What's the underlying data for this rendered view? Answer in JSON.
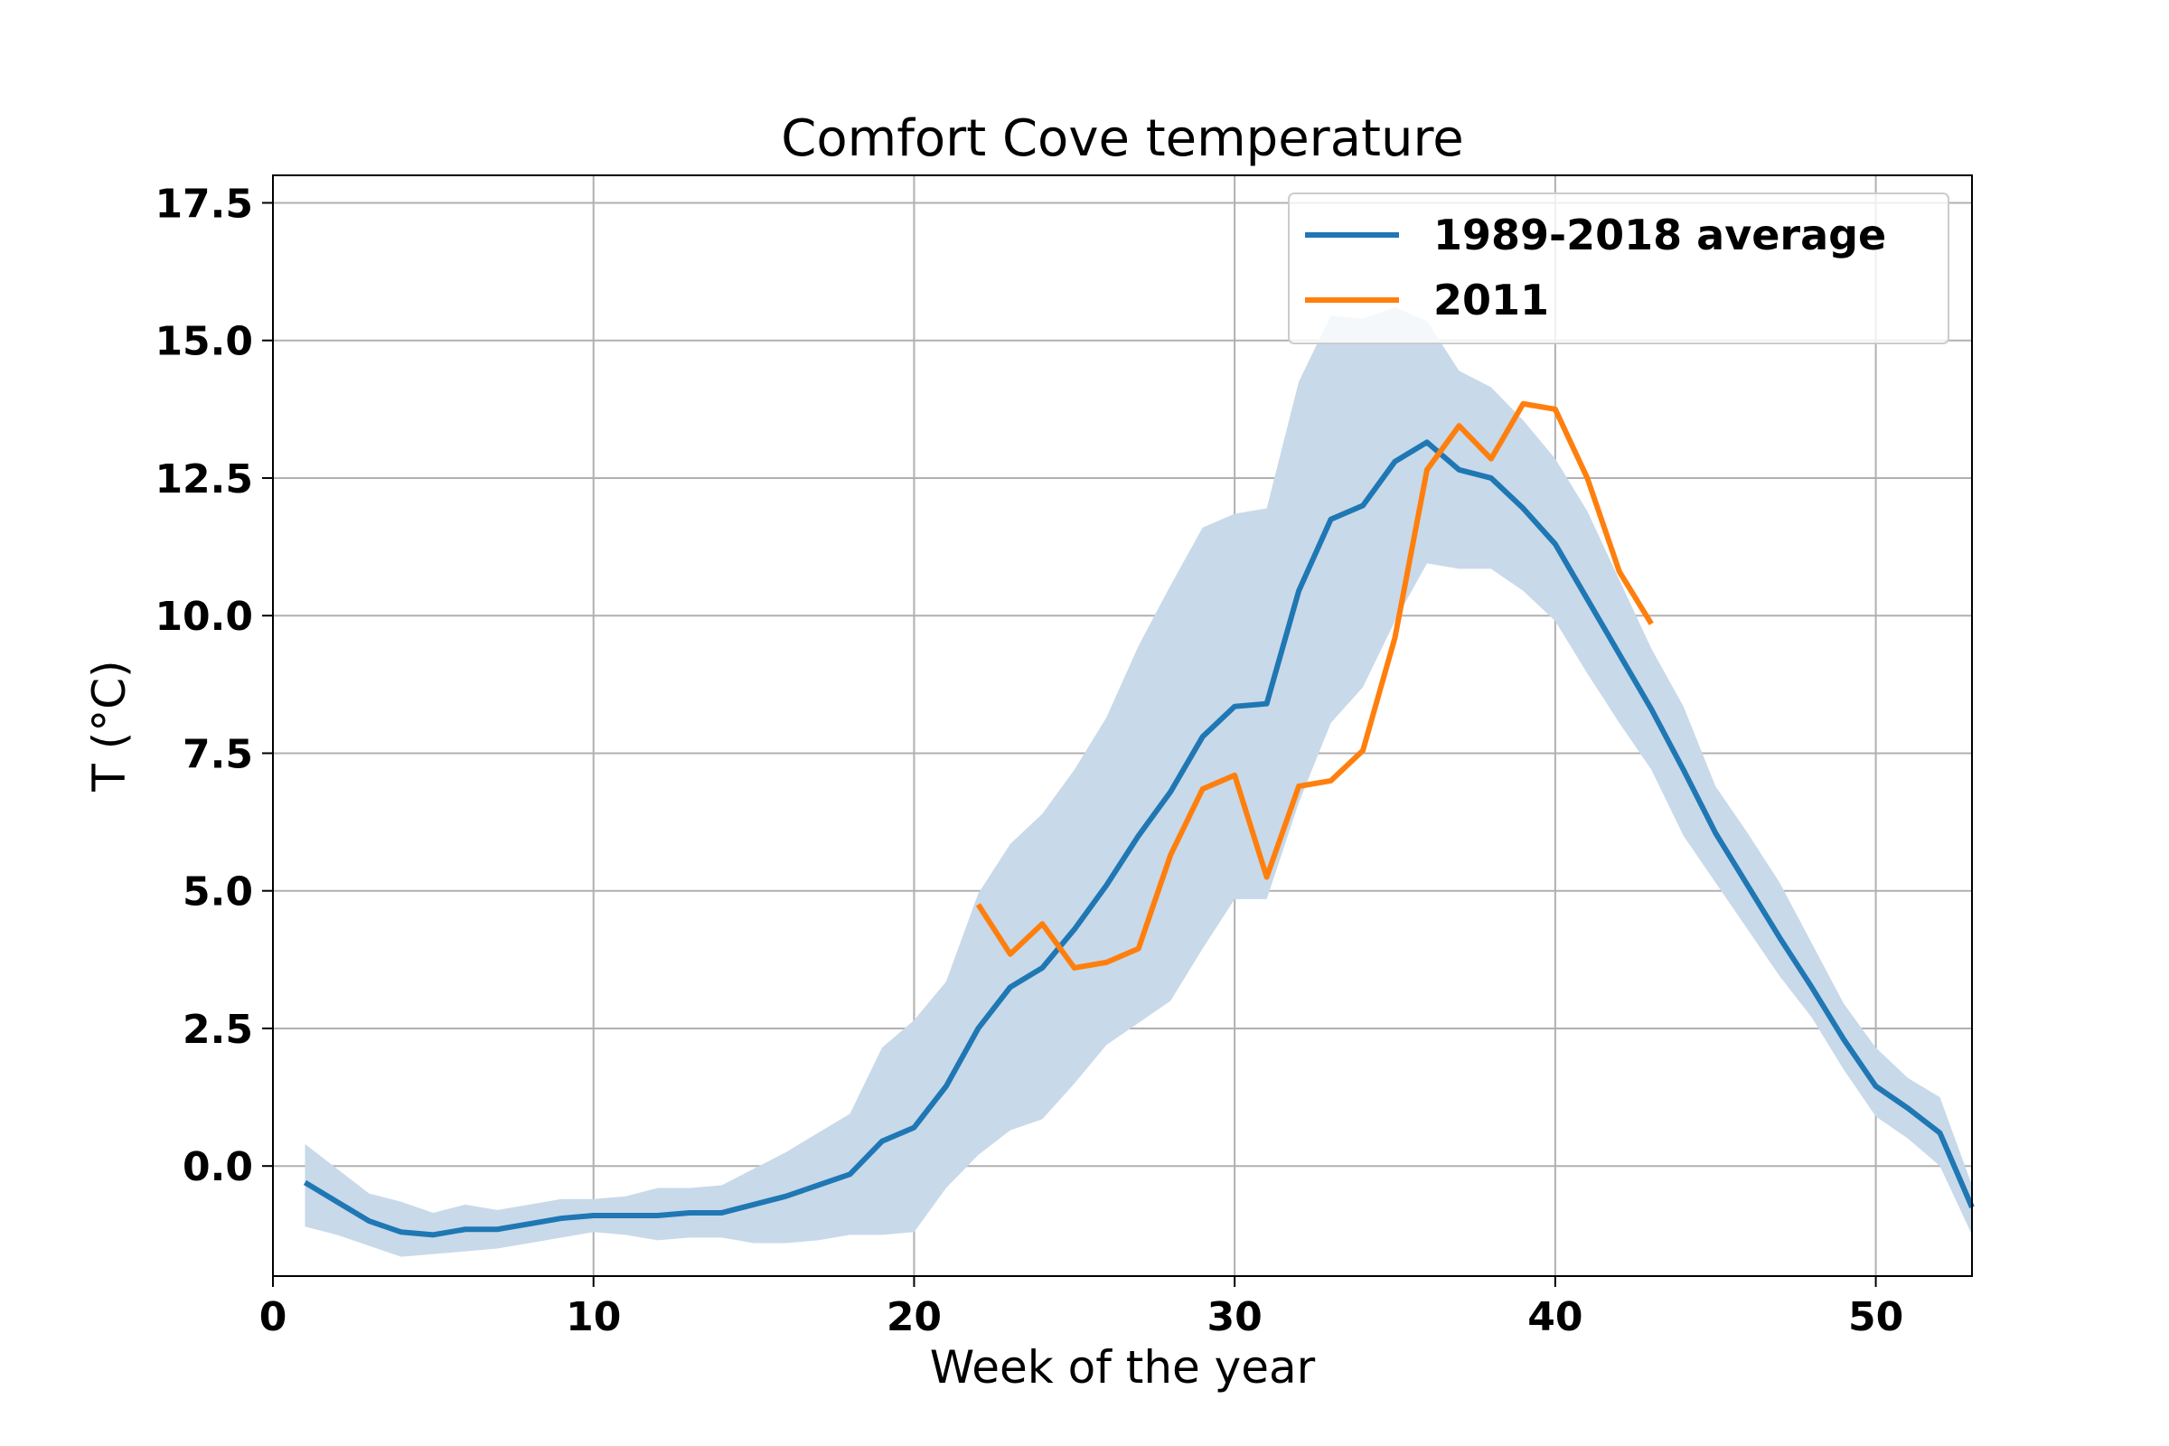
{
  "chart_data": {
    "type": "line",
    "title": "Comfort Cove temperature",
    "xlabel": "Week of the year",
    "ylabel": "T (°C)",
    "xlim": [
      0,
      53
    ],
    "ylim": [
      -2.0,
      18.0
    ],
    "xticks": [
      0,
      10,
      20,
      30,
      40,
      50
    ],
    "yticks": [
      0.0,
      2.5,
      5.0,
      7.5,
      10.0,
      12.5,
      15.0,
      17.5
    ],
    "xtick_labels": [
      "0",
      "10",
      "20",
      "30",
      "40",
      "50"
    ],
    "ytick_labels": [
      "0.0",
      "2.5",
      "5.0",
      "7.5",
      "10.0",
      "12.5",
      "15.0",
      "17.5"
    ],
    "grid": true,
    "legend_position": "top-right",
    "band": {
      "color": "#c8d9e9",
      "x": [
        1,
        2,
        3,
        4,
        5,
        6,
        7,
        8,
        9,
        10,
        11,
        12,
        13,
        14,
        15,
        16,
        17,
        18,
        19,
        20,
        21,
        22,
        23,
        24,
        25,
        26,
        27,
        28,
        29,
        30,
        31,
        32,
        33,
        34,
        35,
        36,
        37,
        38,
        39,
        40,
        41,
        42,
        43,
        44,
        45,
        46,
        47,
        48,
        49,
        50,
        51,
        52,
        53
      ],
      "lower": [
        -1.1,
        -1.25,
        -1.45,
        -1.65,
        -1.6,
        -1.55,
        -1.5,
        -1.4,
        -1.3,
        -1.2,
        -1.25,
        -1.35,
        -1.3,
        -1.3,
        -1.4,
        -1.4,
        -1.35,
        -1.25,
        -1.25,
        -1.2,
        -0.4,
        0.2,
        0.65,
        0.85,
        1.5,
        2.2,
        2.6,
        3.0,
        3.95,
        4.85,
        4.85,
        6.6,
        8.05,
        8.7,
        9.9,
        10.95,
        10.85,
        10.85,
        10.45,
        9.9,
        8.95,
        8.05,
        7.2,
        6.0,
        5.15,
        4.3,
        3.45,
        2.7,
        1.75,
        0.9,
        0.5,
        0.0,
        -1.25
      ],
      "upper": [
        0.4,
        -0.05,
        -0.5,
        -0.65,
        -0.85,
        -0.7,
        -0.8,
        -0.7,
        -0.6,
        -0.6,
        -0.55,
        -0.4,
        -0.4,
        -0.35,
        -0.05,
        0.25,
        0.6,
        0.95,
        2.15,
        2.65,
        3.35,
        4.95,
        5.85,
        6.4,
        7.2,
        8.15,
        9.45,
        10.55,
        11.6,
        11.85,
        11.95,
        14.25,
        15.45,
        15.4,
        15.6,
        15.35,
        14.45,
        14.15,
        13.55,
        12.85,
        11.9,
        10.65,
        9.4,
        8.35,
        6.9,
        6.05,
        5.15,
        4.05,
        2.95,
        2.15,
        1.6,
        1.25,
        -0.35
      ]
    },
    "series": [
      {
        "name": "1989-2018 average",
        "color": "#1f77b4",
        "x": [
          1,
          2,
          3,
          4,
          5,
          6,
          7,
          8,
          9,
          10,
          11,
          12,
          13,
          14,
          15,
          16,
          17,
          18,
          19,
          20,
          21,
          22,
          23,
          24,
          25,
          26,
          27,
          28,
          29,
          30,
          31,
          32,
          33,
          34,
          35,
          36,
          37,
          38,
          39,
          40,
          41,
          42,
          43,
          44,
          45,
          46,
          47,
          48,
          49,
          50,
          51,
          52,
          53
        ],
        "values": [
          -0.3,
          -0.65,
          -1.0,
          -1.2,
          -1.25,
          -1.15,
          -1.15,
          -1.05,
          -0.95,
          -0.9,
          -0.9,
          -0.9,
          -0.85,
          -0.85,
          -0.7,
          -0.55,
          -0.35,
          -0.15,
          0.45,
          0.7,
          1.45,
          2.5,
          3.25,
          3.6,
          4.3,
          5.1,
          6.0,
          6.8,
          7.8,
          8.35,
          8.4,
          10.45,
          11.75,
          12.0,
          12.8,
          13.15,
          12.65,
          12.5,
          11.95,
          11.3,
          10.3,
          9.3,
          8.3,
          7.2,
          6.05,
          5.1,
          4.15,
          3.25,
          2.3,
          1.45,
          1.05,
          0.6,
          -0.75
        ]
      },
      {
        "name": "2011",
        "color": "#ff7f0e",
        "x": [
          22,
          23,
          24,
          25,
          26,
          27,
          28,
          29,
          30,
          31,
          32,
          33,
          34,
          35,
          36,
          37,
          38,
          39,
          40,
          41,
          42,
          43
        ],
        "values": [
          4.75,
          3.85,
          4.4,
          3.6,
          3.7,
          3.95,
          5.65,
          6.85,
          7.1,
          5.25,
          6.9,
          7.0,
          7.55,
          9.6,
          12.65,
          13.45,
          12.85,
          13.85,
          13.75,
          12.5,
          10.8,
          9.85
        ]
      }
    ]
  }
}
